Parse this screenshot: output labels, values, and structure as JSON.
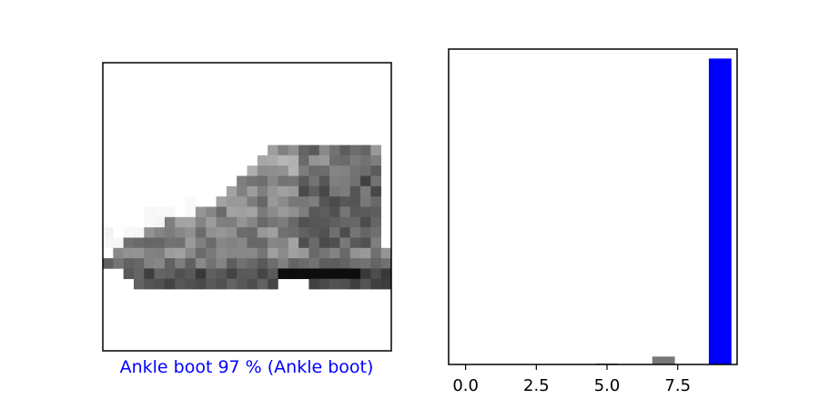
{
  "image_panel": {
    "caption": "Ankle boot 97 % (Ankle boot)",
    "caption_color": "#0000ff",
    "image_kind": "grayscale-ankle-boot"
  },
  "chart_data": {
    "type": "bar",
    "categories": [
      0,
      1,
      2,
      3,
      4,
      5,
      6,
      7,
      8,
      9
    ],
    "values": [
      0.0,
      0.0,
      0.0,
      0.0,
      0.0,
      0.003,
      0.0,
      0.025,
      0.0,
      0.97
    ],
    "bar_colors": [
      "#777777",
      "#777777",
      "#777777",
      "#777777",
      "#777777",
      "#777777",
      "#777777",
      "#777777",
      "#777777",
      "#0000ff"
    ],
    "xticks": [
      "0.0",
      "2.5",
      "5.0",
      "7.5"
    ],
    "xtick_values": [
      0,
      2.5,
      5,
      7.5
    ],
    "xlim": [
      -0.6,
      9.6
    ],
    "ylim": [
      0,
      1
    ],
    "grid": false,
    "yticks_visible": false
  }
}
